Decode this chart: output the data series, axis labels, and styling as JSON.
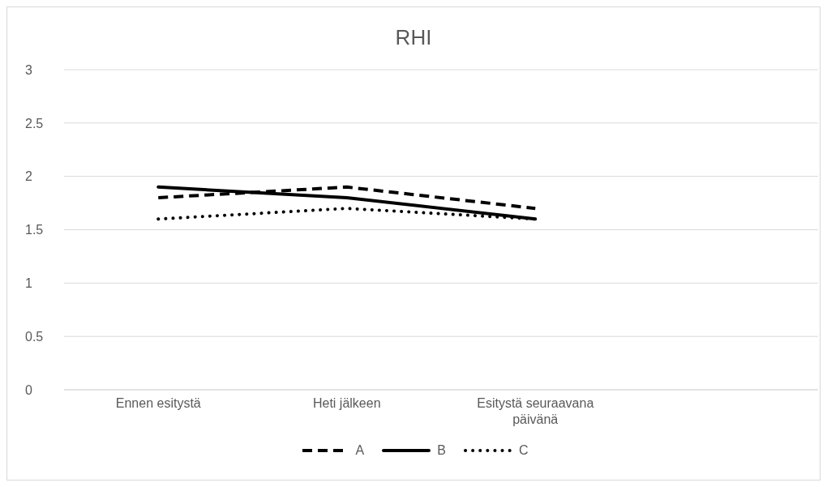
{
  "chart_data": {
    "type": "line",
    "title": "RHI",
    "categories": [
      "Ennen esitystä",
      "Heti jälkeen",
      "Esitystä seuraavana päivänä",
      null
    ],
    "series": [
      {
        "name": "A",
        "color": "#000000",
        "line_style": "dashed",
        "values": [
          1.8,
          1.9,
          1.7,
          null
        ]
      },
      {
        "name": "B",
        "color": "#000000",
        "line_style": "solid",
        "values": [
          1.9,
          1.8,
          1.6,
          null
        ]
      },
      {
        "name": "C",
        "color": "#000000",
        "line_style": "dotted",
        "values": [
          1.6,
          1.7,
          1.6,
          null
        ]
      }
    ],
    "ylim": [
      0,
      3
    ],
    "yticks": [
      0,
      0.5,
      1,
      1.5,
      2,
      2.5,
      3
    ],
    "grid": "y",
    "legend": "bottom",
    "marker": "none"
  }
}
